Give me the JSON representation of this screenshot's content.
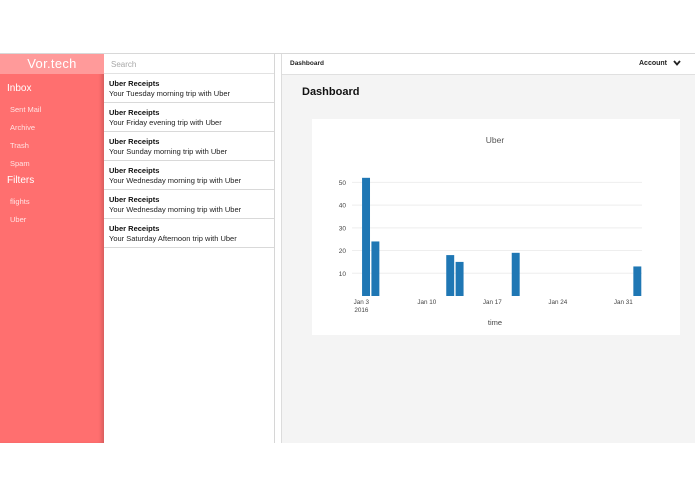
{
  "sidebar": {
    "brand": "Vor.tech",
    "inbox_title": "Inbox",
    "inbox_items": [
      "Sent Mail",
      "Archive",
      "Trash",
      "Spam"
    ],
    "filters_title": "Filters",
    "filter_items": [
      "flights",
      "Uber"
    ]
  },
  "mail_list": {
    "search_placeholder": "Search",
    "items": [
      {
        "from": "Uber Receipts",
        "subject": "Your Tuesday morning trip with Uber"
      },
      {
        "from": "Uber Receipts",
        "subject": "Your Friday evening trip with Uber"
      },
      {
        "from": "Uber Receipts",
        "subject": "Your Sunday morning trip with Uber"
      },
      {
        "from": "Uber Receipts",
        "subject": "Your Wednesday morning trip with Uber"
      },
      {
        "from": "Uber Receipts",
        "subject": "Your Wednesday morning trip with Uber"
      },
      {
        "from": "Uber Receipts",
        "subject": "Your Saturday Afternoon trip with Uber"
      }
    ]
  },
  "topbar": {
    "breadcrumb": "Dashboard",
    "account_label": "Account"
  },
  "main": {
    "title": "Dashboard"
  },
  "colors": {
    "sidebar": "#ff6f6f",
    "brand_bg": "#ff9a9a",
    "bar": "#1f77b4"
  },
  "chart_data": {
    "type": "bar",
    "title": "Uber",
    "xlabel": "time",
    "ylabel": "",
    "x": [
      "2016-01-03",
      "2016-01-04",
      "2016-01-12",
      "2016-01-13",
      "2016-01-19",
      "2016-02-01"
    ],
    "values": [
      52,
      24,
      18,
      15,
      19,
      13
    ],
    "ylim": [
      0,
      55
    ],
    "yticks": [
      10,
      20,
      30,
      40,
      50
    ],
    "xticks": [
      {
        "date": "2016-01-03",
        "label": "Jan 3",
        "sublabel": "2016"
      },
      {
        "date": "2016-01-10",
        "label": "Jan 10"
      },
      {
        "date": "2016-01-17",
        "label": "Jan 17"
      },
      {
        "date": "2016-01-24",
        "label": "Jan 24"
      },
      {
        "date": "2016-01-31",
        "label": "Jan 31"
      }
    ],
    "grid": true
  }
}
